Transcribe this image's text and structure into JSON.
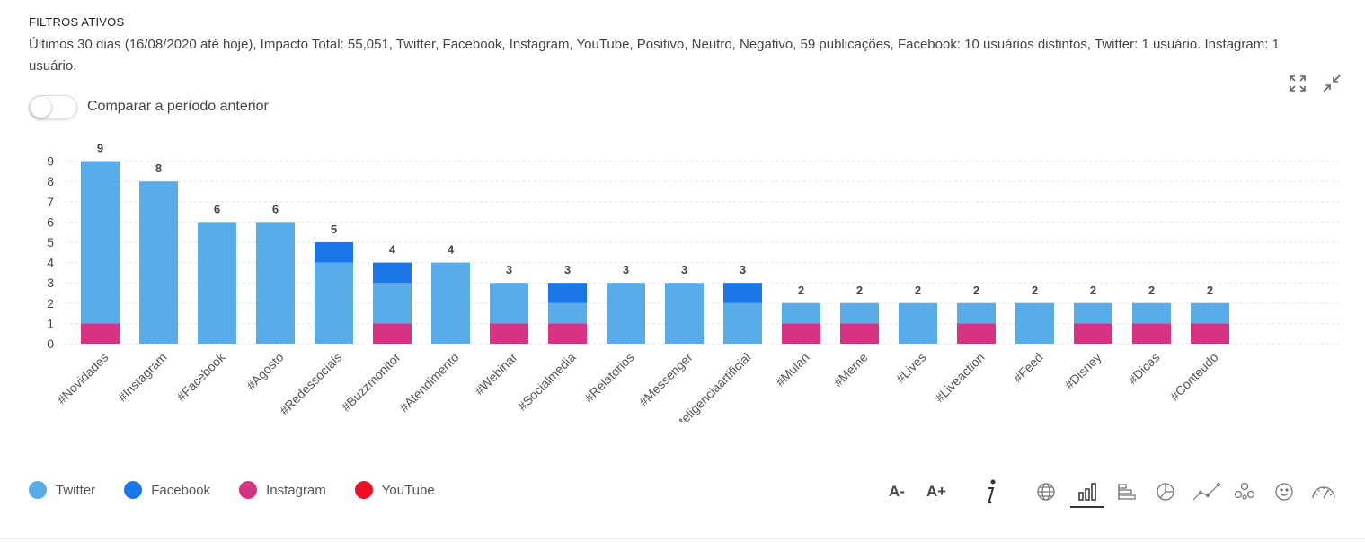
{
  "filters": {
    "title": "FILTROS ATIVOS",
    "description": "Últimos 30 dias (16/08/2020 até hoje), Impacto Total: 55,051, Twitter, Facebook, Instagram, YouTube, Positivo, Neutro, Negativo, 59 publicações, Facebook: 10 usuários distintos, Twitter: 1 usuário. Instagram: 1 usuário."
  },
  "compare": {
    "label": "Comparar a período anterior",
    "enabled": false
  },
  "colors": {
    "twitter": "#5aabea",
    "facebook": "#1a77ea",
    "instagram": "#d63384",
    "youtube": "#ef0f22"
  },
  "chart_data": {
    "type": "bar",
    "stacked": true,
    "categories": [
      "#Novidades",
      "#Instagram",
      "#Facebook",
      "#Agosto",
      "#Redessociais",
      "#Buzzmonitor",
      "#Atendimento",
      "#Webinar",
      "#Socialmedia",
      "#Relatorios",
      "#Messenger",
      "#Inteligenciaartificial",
      "#Mulan",
      "#Meme",
      "#Lives",
      "#Liveaction",
      "#Feed",
      "#Disney",
      "#Dicas",
      "#Conteudo"
    ],
    "series": [
      {
        "name": "Instagram",
        "color": "#d63384",
        "values": [
          1,
          0,
          0,
          0,
          0,
          1,
          0,
          1,
          1,
          0,
          0,
          0,
          1,
          1,
          0,
          1,
          0,
          1,
          1,
          1
        ]
      },
      {
        "name": "Twitter",
        "color": "#5aabea",
        "values": [
          8,
          8,
          6,
          6,
          4,
          2,
          4,
          2,
          1,
          3,
          3,
          2,
          1,
          1,
          2,
          1,
          2,
          1,
          1,
          1
        ]
      },
      {
        "name": "Facebook",
        "color": "#1a77ea",
        "values": [
          0,
          0,
          0,
          0,
          1,
          1,
          0,
          0,
          1,
          0,
          0,
          1,
          0,
          0,
          0,
          0,
          0,
          0,
          0,
          0
        ]
      },
      {
        "name": "YouTube",
        "color": "#ef0f22",
        "values": [
          0,
          0,
          0,
          0,
          0,
          0,
          0,
          0,
          0,
          0,
          0,
          0,
          0,
          0,
          0,
          0,
          0,
          0,
          0,
          0
        ]
      }
    ],
    "totals": [
      9,
      8,
      6,
      6,
      5,
      4,
      4,
      3,
      3,
      3,
      3,
      3,
      2,
      2,
      2,
      2,
      2,
      2,
      2,
      2
    ],
    "ylim": [
      0,
      9
    ],
    "yticks": [
      0,
      1,
      2,
      3,
      4,
      5,
      6,
      7,
      8,
      9
    ],
    "grid": true,
    "legend_position": "bottom-left"
  },
  "legend": [
    {
      "label": "Twitter",
      "color": "#5aabea"
    },
    {
      "label": "Facebook",
      "color": "#1a77ea"
    },
    {
      "label": "Instagram",
      "color": "#d63384"
    },
    {
      "label": "YouTube",
      "color": "#ef0f22"
    }
  ],
  "tools": {
    "font_decrease": "A-",
    "font_increase": "A+",
    "items": [
      "info-icon",
      "globe-icon",
      "column-chart-icon",
      "bar-chart-icon",
      "pie-chart-icon",
      "line-chart-icon",
      "network-icon",
      "sentiment-icon",
      "gauge-icon"
    ],
    "active": "column-chart-icon"
  }
}
